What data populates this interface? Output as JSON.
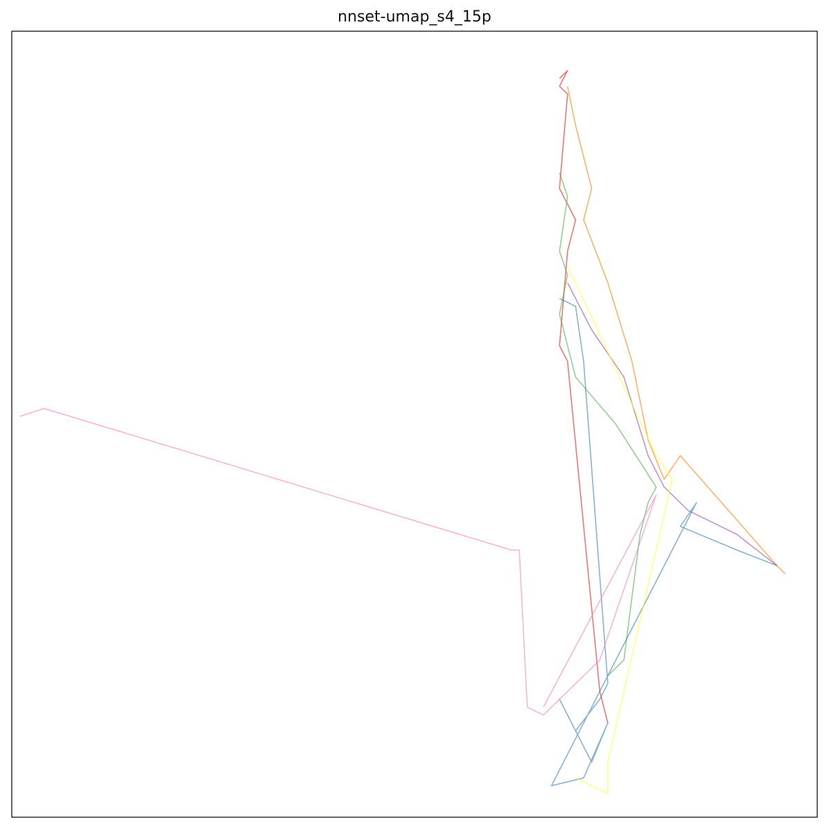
{
  "chart_data": {
    "type": "line",
    "title": "nnset-umap_s4_15p",
    "xlabel": "",
    "ylabel": "",
    "grid": false,
    "axes_ticks": false,
    "xlim": [
      0,
      1
    ],
    "ylim": [
      0,
      1
    ],
    "series": [
      {
        "color": "#e41a1c",
        "points": [
          [
            0.68,
            0.94
          ],
          [
            0.69,
            0.95
          ],
          [
            0.68,
            0.93
          ],
          [
            0.69,
            0.92
          ],
          [
            0.68,
            0.8
          ],
          [
            0.7,
            0.76
          ],
          [
            0.69,
            0.72
          ],
          [
            0.68,
            0.6
          ],
          [
            0.69,
            0.58
          ],
          [
            0.73,
            0.16
          ],
          [
            0.74,
            0.12
          ]
        ]
      },
      {
        "color": "#ff7f00",
        "points": [
          [
            0.69,
            0.93
          ],
          [
            0.7,
            0.88
          ],
          [
            0.71,
            0.84
          ],
          [
            0.72,
            0.8
          ],
          [
            0.71,
            0.76
          ],
          [
            0.74,
            0.68
          ],
          [
            0.77,
            0.58
          ],
          [
            0.79,
            0.48
          ],
          [
            0.81,
            0.43
          ],
          [
            0.83,
            0.46
          ],
          [
            0.95,
            0.32
          ],
          [
            0.96,
            0.31
          ]
        ]
      },
      {
        "color": "#4daf4a",
        "points": [
          [
            0.68,
            0.82
          ],
          [
            0.69,
            0.79
          ],
          [
            0.68,
            0.72
          ],
          [
            0.69,
            0.69
          ],
          [
            0.68,
            0.64
          ],
          [
            0.7,
            0.56
          ],
          [
            0.75,
            0.5
          ],
          [
            0.8,
            0.42
          ],
          [
            0.79,
            0.4
          ],
          [
            0.78,
            0.36
          ],
          [
            0.76,
            0.2
          ],
          [
            0.74,
            0.18
          ]
        ]
      },
      {
        "color": "#984ea3",
        "points": [
          [
            0.69,
            0.68
          ],
          [
            0.72,
            0.62
          ],
          [
            0.76,
            0.56
          ],
          [
            0.79,
            0.46
          ],
          [
            0.81,
            0.42
          ],
          [
            0.84,
            0.39
          ],
          [
            0.9,
            0.36
          ],
          [
            0.95,
            0.32
          ]
        ]
      },
      {
        "color": "#377eb8",
        "points": [
          [
            0.68,
            0.66
          ],
          [
            0.7,
            0.65
          ],
          [
            0.71,
            0.58
          ],
          [
            0.74,
            0.17
          ],
          [
            0.73,
            0.15
          ],
          [
            0.7,
            0.11
          ],
          [
            0.68,
            0.15
          ],
          [
            0.72,
            0.07
          ],
          [
            0.74,
            0.12
          ],
          [
            0.71,
            0.05
          ],
          [
            0.67,
            0.04
          ],
          [
            0.85,
            0.4
          ],
          [
            0.83,
            0.37
          ],
          [
            0.9,
            0.34
          ],
          [
            0.95,
            0.32
          ]
        ]
      },
      {
        "color": "#ffff33",
        "points": [
          [
            0.69,
            0.7
          ],
          [
            0.7,
            0.68
          ],
          [
            0.8,
            0.46
          ],
          [
            0.82,
            0.43
          ],
          [
            0.74,
            0.07
          ],
          [
            0.74,
            0.03
          ],
          [
            0.7,
            0.05
          ]
        ]
      },
      {
        "color": "#f781bf",
        "points": [
          [
            0.01,
            0.51
          ],
          [
            0.04,
            0.52
          ],
          [
            0.62,
            0.34
          ],
          [
            0.63,
            0.34
          ],
          [
            0.64,
            0.14
          ],
          [
            0.66,
            0.13
          ],
          [
            0.73,
            0.2
          ],
          [
            0.8,
            0.41
          ],
          [
            0.66,
            0.14
          ]
        ]
      }
    ]
  }
}
